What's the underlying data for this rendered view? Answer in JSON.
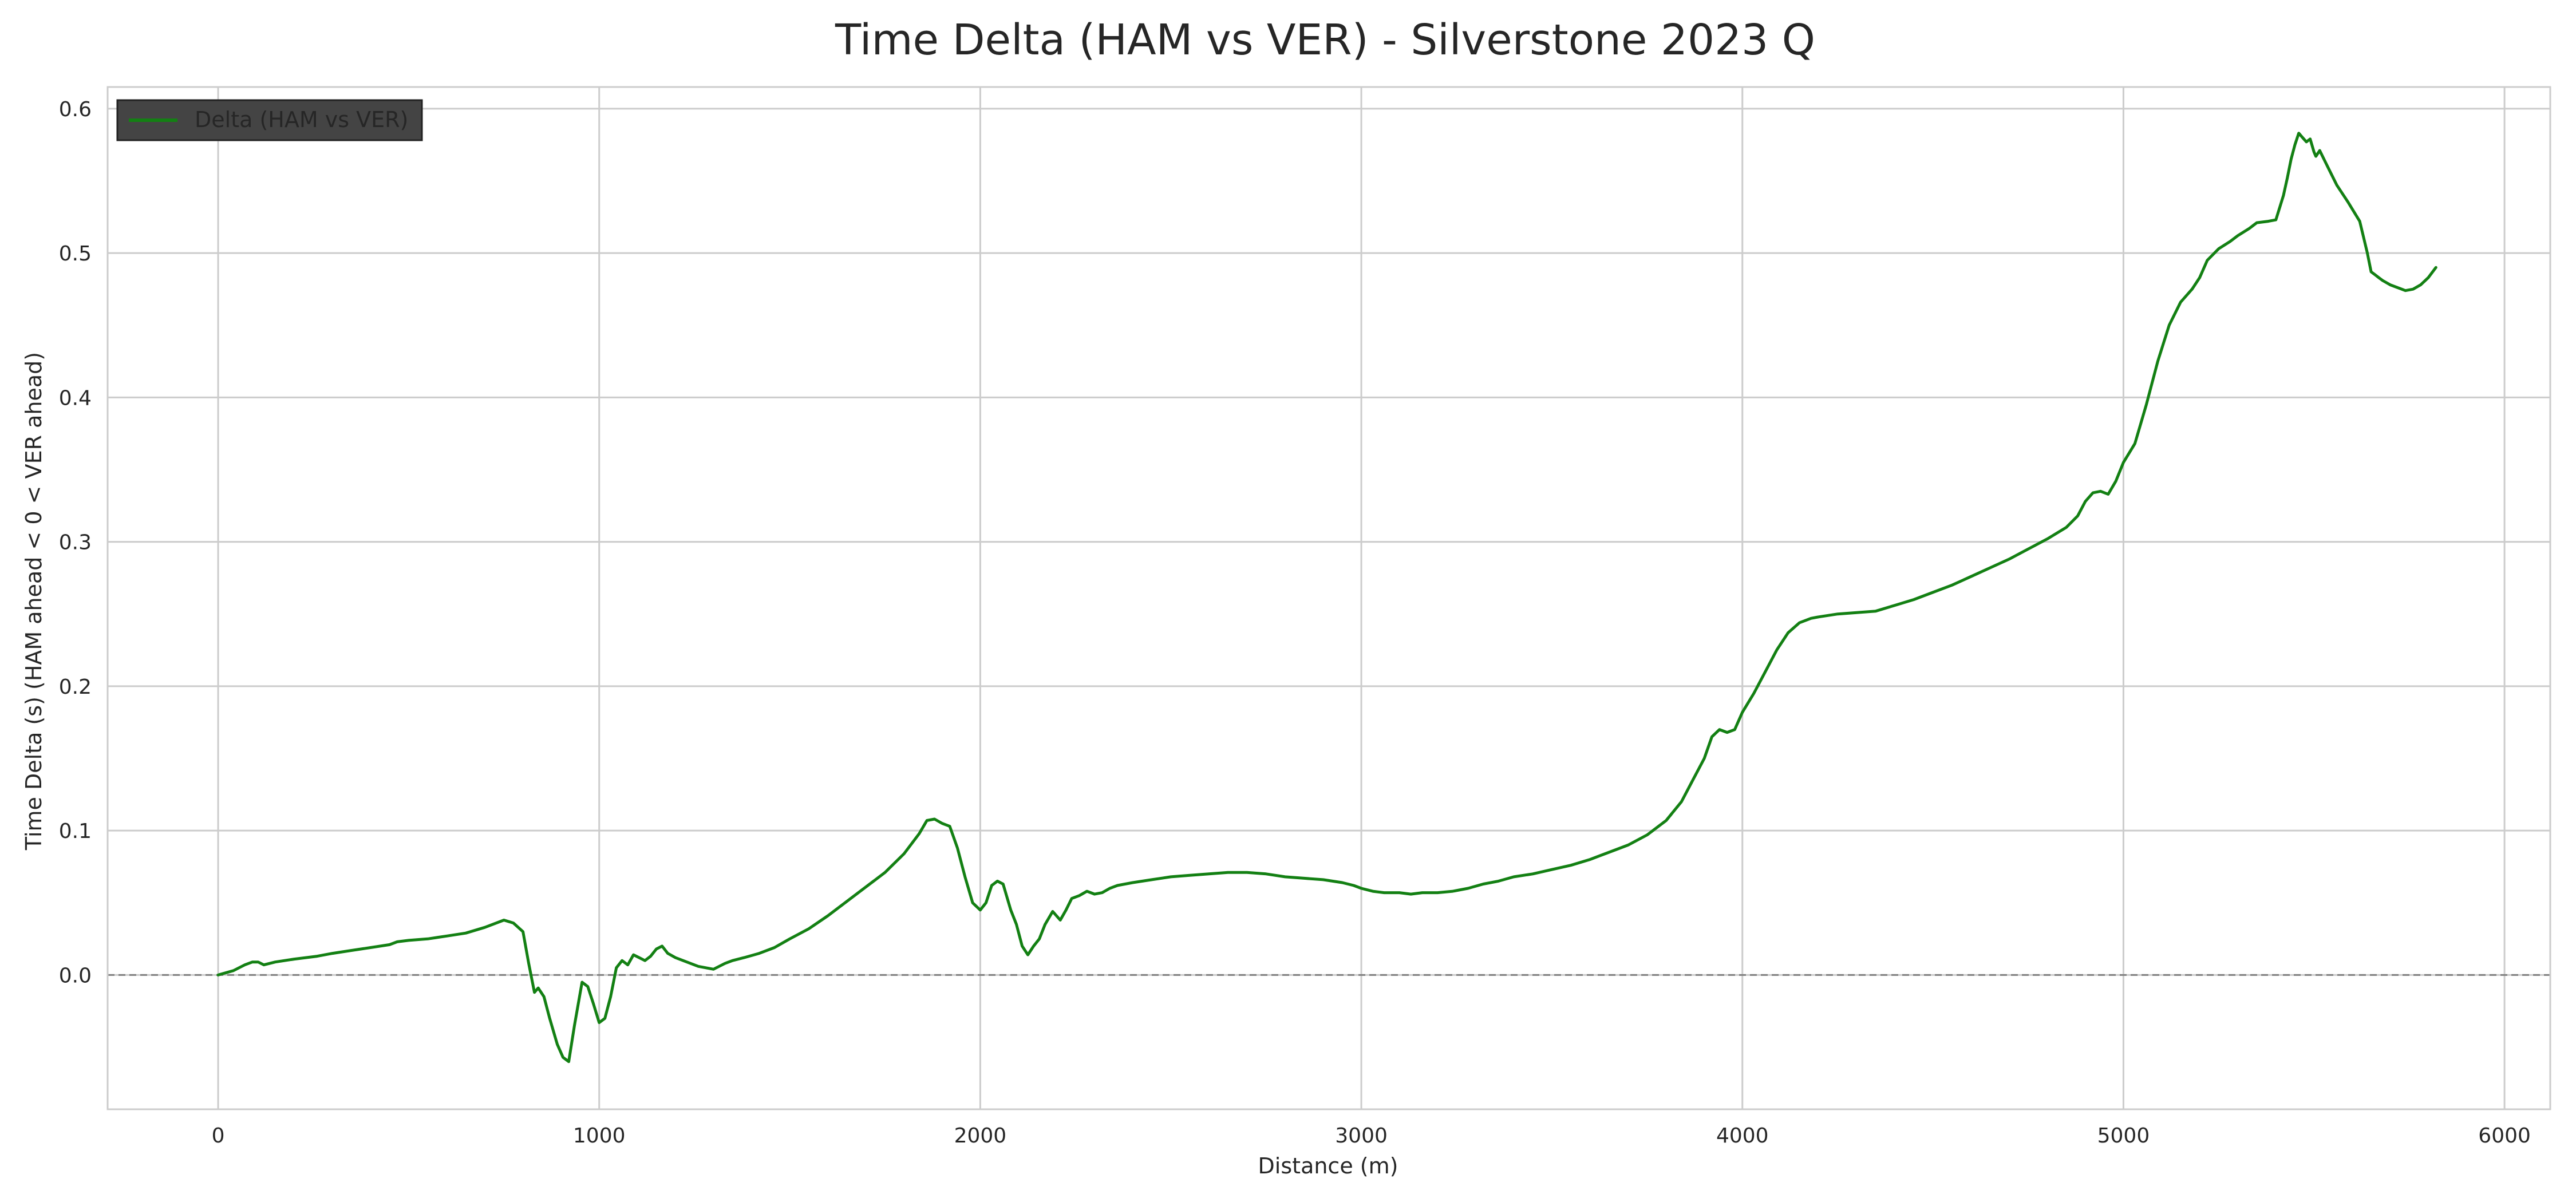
{
  "chart_data": {
    "type": "line",
    "title": "Time Delta (HAM vs VER) - Silverstone 2023 Q",
    "xlabel": "Distance (m)",
    "ylabel": "Time Delta (s) (HAM ahead < 0 < VER ahead)",
    "xlim": [
      -290,
      6120
    ],
    "ylim": [
      -0.093,
      0.615
    ],
    "xticks": [
      0,
      1000,
      2000,
      3000,
      4000,
      5000,
      6000
    ],
    "yticks": [
      0.0,
      0.1,
      0.2,
      0.3,
      0.4,
      0.5,
      0.6
    ],
    "xtick_labels": [
      "0",
      "1000",
      "2000",
      "3000",
      "4000",
      "5000",
      "6000"
    ],
    "ytick_labels": [
      "0.0",
      "0.1",
      "0.2",
      "0.3",
      "0.4",
      "0.5",
      "0.6"
    ],
    "grid": true,
    "legend": {
      "position": "top-left",
      "entries": [
        "Delta (HAM vs VER)"
      ]
    },
    "reference_line": {
      "y": 0.0,
      "style": "dashed",
      "color": "#808080"
    },
    "colors": {
      "series": "#138013",
      "grid": "#cccccc",
      "legend_bg": "#444444"
    },
    "series": [
      {
        "name": "Delta (HAM vs VER)",
        "x": [
          0,
          40,
          70,
          90,
          105,
          120,
          150,
          200,
          260,
          300,
          350,
          400,
          450,
          470,
          500,
          550,
          600,
          650,
          700,
          750,
          775,
          800,
          815,
          830,
          840,
          855,
          870,
          890,
          905,
          920,
          935,
          955,
          970,
          985,
          1000,
          1015,
          1030,
          1045,
          1060,
          1075,
          1090,
          1105,
          1120,
          1135,
          1150,
          1165,
          1180,
          1200,
          1230,
          1260,
          1300,
          1330,
          1350,
          1380,
          1420,
          1460,
          1500,
          1550,
          1600,
          1650,
          1700,
          1750,
          1800,
          1840,
          1860,
          1880,
          1900,
          1920,
          1940,
          1960,
          1980,
          2000,
          2015,
          2030,
          2045,
          2060,
          2080,
          2095,
          2110,
          2125,
          2140,
          2155,
          2170,
          2190,
          2210,
          2225,
          2240,
          2260,
          2280,
          2300,
          2320,
          2340,
          2360,
          2400,
          2450,
          2500,
          2550,
          2600,
          2650,
          2700,
          2750,
          2800,
          2850,
          2900,
          2950,
          2980,
          3000,
          3030,
          3060,
          3100,
          3130,
          3160,
          3200,
          3240,
          3280,
          3320,
          3360,
          3400,
          3450,
          3500,
          3550,
          3600,
          3650,
          3700,
          3750,
          3800,
          3840,
          3870,
          3900,
          3920,
          3940,
          3960,
          3980,
          4000,
          4030,
          4060,
          4090,
          4120,
          4150,
          4180,
          4200,
          4250,
          4300,
          4350,
          4400,
          4450,
          4500,
          4550,
          4600,
          4650,
          4700,
          4750,
          4800,
          4850,
          4880,
          4900,
          4920,
          4940,
          4960,
          4980,
          5000,
          5030,
          5060,
          5090,
          5120,
          5150,
          5180,
          5200,
          5220,
          5250,
          5280,
          5300,
          5330,
          5350,
          5380,
          5400,
          5420,
          5430,
          5440,
          5450,
          5460,
          5470,
          5480,
          5490,
          5500,
          5505,
          5515,
          5530,
          5560,
          5590,
          5620,
          5640,
          5650,
          5660,
          5670,
          5680,
          5700,
          5720,
          5740,
          5760,
          5780,
          5800,
          5820
        ],
        "values": [
          0.0,
          0.003,
          0.007,
          0.009,
          0.009,
          0.007,
          0.009,
          0.011,
          0.013,
          0.015,
          0.017,
          0.019,
          0.021,
          0.023,
          0.024,
          0.025,
          0.027,
          0.029,
          0.033,
          0.038,
          0.036,
          0.03,
          0.008,
          -0.012,
          -0.009,
          -0.015,
          -0.03,
          -0.048,
          -0.057,
          -0.06,
          -0.035,
          -0.005,
          -0.008,
          -0.02,
          -0.033,
          -0.03,
          -0.015,
          0.005,
          0.01,
          0.007,
          0.014,
          0.012,
          0.01,
          0.013,
          0.018,
          0.02,
          0.015,
          0.012,
          0.009,
          0.006,
          0.004,
          0.008,
          0.01,
          0.012,
          0.015,
          0.019,
          0.025,
          0.032,
          0.041,
          0.051,
          0.061,
          0.071,
          0.084,
          0.098,
          0.107,
          0.108,
          0.105,
          0.103,
          0.088,
          0.068,
          0.05,
          0.045,
          0.05,
          0.062,
          0.065,
          0.063,
          0.045,
          0.035,
          0.02,
          0.014,
          0.02,
          0.025,
          0.035,
          0.044,
          0.038,
          0.045,
          0.053,
          0.055,
          0.058,
          0.056,
          0.057,
          0.06,
          0.062,
          0.064,
          0.066,
          0.068,
          0.069,
          0.07,
          0.071,
          0.071,
          0.07,
          0.068,
          0.067,
          0.066,
          0.064,
          0.062,
          0.06,
          0.058,
          0.057,
          0.057,
          0.056,
          0.057,
          0.057,
          0.058,
          0.06,
          0.063,
          0.065,
          0.068,
          0.07,
          0.073,
          0.076,
          0.08,
          0.085,
          0.09,
          0.097,
          0.107,
          0.12,
          0.135,
          0.15,
          0.165,
          0.17,
          0.168,
          0.17,
          0.182,
          0.195,
          0.21,
          0.225,
          0.237,
          0.244,
          0.247,
          0.248,
          0.25,
          0.251,
          0.252,
          0.256,
          0.26,
          0.265,
          0.27,
          0.276,
          0.282,
          0.288,
          0.295,
          0.302,
          0.31,
          0.318,
          0.328,
          0.334,
          0.335,
          0.333,
          0.342,
          0.355,
          0.368,
          0.395,
          0.425,
          0.45,
          0.466,
          0.475,
          0.483,
          0.495,
          0.503,
          0.508,
          0.512,
          0.517,
          0.521,
          0.522,
          0.523,
          0.54,
          0.552,
          0.565,
          0.575,
          0.583,
          0.58,
          0.577,
          0.579,
          0.57,
          0.567,
          0.571,
          0.563,
          0.547,
          0.535,
          0.522,
          0.5,
          0.487,
          0.485,
          0.483,
          0.481,
          0.478,
          0.476,
          0.474,
          0.475,
          0.478,
          0.483,
          0.49
        ]
      }
    ]
  }
}
